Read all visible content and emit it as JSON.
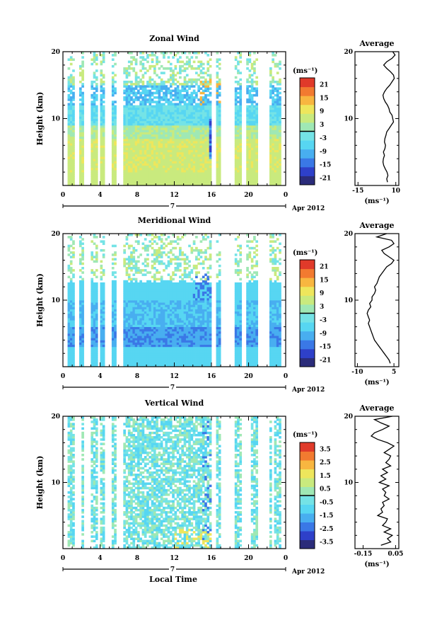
{
  "figure": {
    "xlabel": "Local Time",
    "date_label": "Apr 2012",
    "day_label": "7",
    "colorbar_unit": "(ms⁻¹)",
    "profile_unit": "(ms⁻¹)"
  },
  "chart_data": [
    {
      "type": "heatmap",
      "title": "Zonal Wind",
      "ylabel": "Height (km)",
      "x_ticks": [
        "0",
        "4",
        "8",
        "12",
        "16",
        "20",
        "0"
      ],
      "y_ticks": [
        "10",
        "20"
      ],
      "xlim": [
        0,
        24
      ],
      "ylim": [
        0,
        20
      ],
      "colorbar": {
        "range": [
          -24,
          24
        ],
        "ticks": [
          "21",
          "15",
          "9",
          "3",
          "-3",
          "-9",
          "-15",
          "-21"
        ]
      }
    },
    {
      "type": "line",
      "title": "Average",
      "x_ticks": [
        "-15",
        "10"
      ],
      "y_ticks": [
        "10",
        "20"
      ],
      "xlim": [
        -17,
        12
      ],
      "ylim": [
        0,
        20
      ],
      "series": [
        {
          "x": [
            4.5,
            4.0,
            4.8,
            4.2,
            3.0,
            2.0,
            1.5,
            1.8,
            2.5,
            1.8,
            2.8,
            3.2,
            2.5,
            2.8,
            3.5,
            4.0,
            5.5,
            7.0,
            8.5,
            8.0,
            7.5,
            6.0,
            5.5,
            4.5,
            3.0,
            2.0,
            1.5,
            2.5,
            4.0,
            6.0,
            7.5,
            9.0,
            8.5,
            6.5,
            4.0,
            2.0,
            4.0,
            7.5,
            9.5,
            8.0
          ],
          "y": [
            0.5,
            1.0,
            1.5,
            2.0,
            2.5,
            3.0,
            3.5,
            4.0,
            4.5,
            5.0,
            5.5,
            6.0,
            6.5,
            7.0,
            7.5,
            8.0,
            8.5,
            9.0,
            9.5,
            10.0,
            10.5,
            11.0,
            11.5,
            12.0,
            12.5,
            13.0,
            13.5,
            14.0,
            14.5,
            15.0,
            15.5,
            16.0,
            16.5,
            17.0,
            17.5,
            18.0,
            18.5,
            19.0,
            19.5,
            20.0
          ]
        }
      ]
    },
    {
      "type": "heatmap",
      "title": "Meridional Wind",
      "ylabel": "Height (km)",
      "x_ticks": [
        "0",
        "4",
        "8",
        "12",
        "16",
        "20",
        "0"
      ],
      "y_ticks": [
        "10",
        "20"
      ],
      "xlim": [
        0,
        24
      ],
      "ylim": [
        0,
        20
      ],
      "colorbar": {
        "range": [
          -24,
          24
        ],
        "ticks": [
          "21",
          "15",
          "9",
          "3",
          "-3",
          "-9",
          "-15",
          "-21"
        ]
      }
    },
    {
      "type": "line",
      "title": "Average",
      "x_ticks": [
        "-10",
        "5"
      ],
      "y_ticks": [
        "10",
        "20"
      ],
      "xlim": [
        -11,
        7
      ],
      "ylim": [
        0,
        20
      ],
      "series": [
        {
          "x": [
            3.5,
            3.0,
            2.0,
            1.0,
            0.0,
            -1.0,
            -2.0,
            -3.0,
            -3.5,
            -4.0,
            -4.5,
            -5.0,
            -5.5,
            -5.0,
            -5.5,
            -6.0,
            -5.5,
            -4.5,
            -5.0,
            -4.0,
            -4.0,
            -3.0,
            -2.5,
            -3.0,
            -2.0,
            -1.5,
            -1.0,
            0.0,
            1.0,
            2.0,
            4.0,
            5.0,
            3.0,
            1.0,
            0.0,
            3.0,
            5.0,
            4.0,
            -2.0,
            2.0
          ],
          "y": [
            0.5,
            1.0,
            1.5,
            2.0,
            2.5,
            3.0,
            3.5,
            4.0,
            4.5,
            5.0,
            5.5,
            6.0,
            6.5,
            7.0,
            7.5,
            8.0,
            8.5,
            9.0,
            9.5,
            10.0,
            10.5,
            11.0,
            11.5,
            12.0,
            12.5,
            13.0,
            13.5,
            14.0,
            14.5,
            15.0,
            15.5,
            16.0,
            16.5,
            17.0,
            17.5,
            18.0,
            18.5,
            19.0,
            19.5,
            20.0
          ]
        }
      ]
    },
    {
      "type": "heatmap",
      "title": "Vertical Wind",
      "ylabel": "Height (km)",
      "xlabel": "Local Time",
      "x_ticks": [
        "0",
        "4",
        "8",
        "12",
        "16",
        "20",
        "0"
      ],
      "y_ticks": [
        "10",
        "20"
      ],
      "xlim": [
        0,
        24
      ],
      "ylim": [
        0,
        20
      ],
      "colorbar": {
        "range": [
          -4,
          4
        ],
        "ticks": [
          "3.5",
          "2.5",
          "1.5",
          "0.5",
          "-0.5",
          "-1.5",
          "-2.5",
          "-3.5"
        ]
      }
    },
    {
      "type": "line",
      "title": "Average",
      "x_ticks": [
        "-0.15",
        "0.05"
      ],
      "y_ticks": [
        "10",
        "20"
      ],
      "xlim": [
        -0.2,
        0.07
      ],
      "ylim": [
        0,
        20
      ],
      "series": [
        {
          "x": [
            -0.04,
            0.02,
            0.0,
            0.03,
            -0.02,
            0.02,
            -0.03,
            -0.01,
            0.0,
            -0.06,
            -0.03,
            -0.04,
            -0.02,
            -0.03,
            0.01,
            -0.02,
            -0.01,
            -0.03,
            0.01,
            -0.05,
            -0.01,
            -0.04,
            0.0,
            -0.03,
            0.02,
            -0.01,
            0.01,
            0.02,
            -0.02,
            0.01,
            0.04,
            0.0,
            -0.06,
            -0.1,
            -0.08,
            -0.03,
            0.01,
            -0.04,
            -0.08,
            0.03
          ],
          "y": [
            0.5,
            1.0,
            1.5,
            2.0,
            2.5,
            3.0,
            3.5,
            4.0,
            4.5,
            5.0,
            5.5,
            6.0,
            6.5,
            7.0,
            7.5,
            8.0,
            8.5,
            9.0,
            9.5,
            10.0,
            10.5,
            11.0,
            11.5,
            12.0,
            12.5,
            13.0,
            13.5,
            14.0,
            14.5,
            15.0,
            15.5,
            16.0,
            16.5,
            17.0,
            17.5,
            18.0,
            18.5,
            19.0,
            19.5,
            20.0
          ]
        }
      ]
    }
  ],
  "colormap": [
    "#2b2c7a",
    "#2e40c9",
    "#3a78e6",
    "#48aef0",
    "#57d6f2",
    "#74e3e6",
    "#9fe8b4",
    "#c9ea7e",
    "#eee65c",
    "#f8b640",
    "#f27a30",
    "#e03a2a"
  ]
}
